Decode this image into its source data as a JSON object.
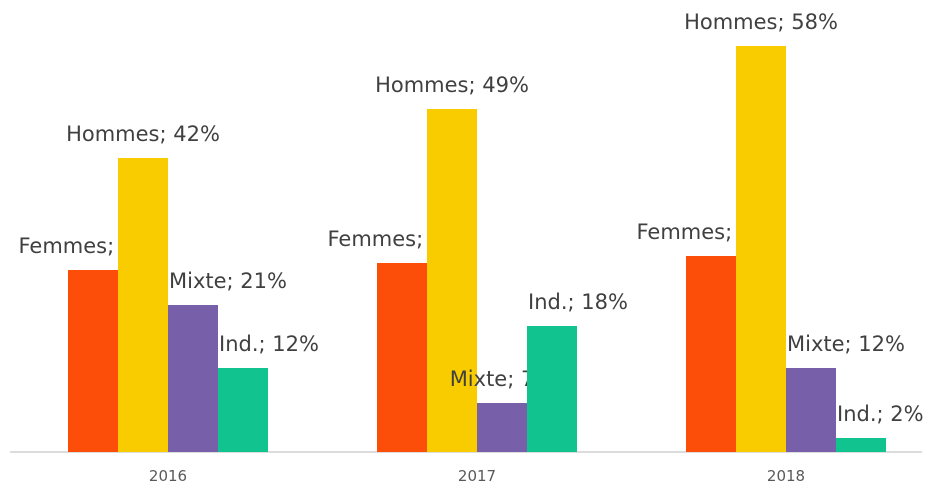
{
  "chart_data": {
    "type": "bar",
    "categories": [
      "2016",
      "2017",
      "2018"
    ],
    "series": [
      {
        "name": "Femmes",
        "color": "#fc4e08",
        "values": [
          26,
          27,
          28
        ],
        "value_labels": [
          "Femmes; 26%",
          "Femmes; 27%",
          "Femmes; 28%"
        ]
      },
      {
        "name": "Hommes",
        "color": "#f9cc00",
        "values": [
          42,
          49,
          58
        ],
        "value_labels": [
          "Hommes; 42%",
          "Hommes; 49%",
          "Hommes; 58%"
        ]
      },
      {
        "name": "Mixte",
        "color": "#7760a9",
        "values": [
          21,
          7,
          12
        ],
        "value_labels": [
          "Mixte; 21%",
          "Mixte; 7%",
          "Mixte; 12%"
        ]
      },
      {
        "name": "Ind.",
        "color": "#11c48f",
        "values": [
          12,
          18,
          2
        ],
        "value_labels": [
          "Ind.; 12%",
          "Ind.; 18%",
          "Ind.; 2%"
        ]
      }
    ]
  }
}
